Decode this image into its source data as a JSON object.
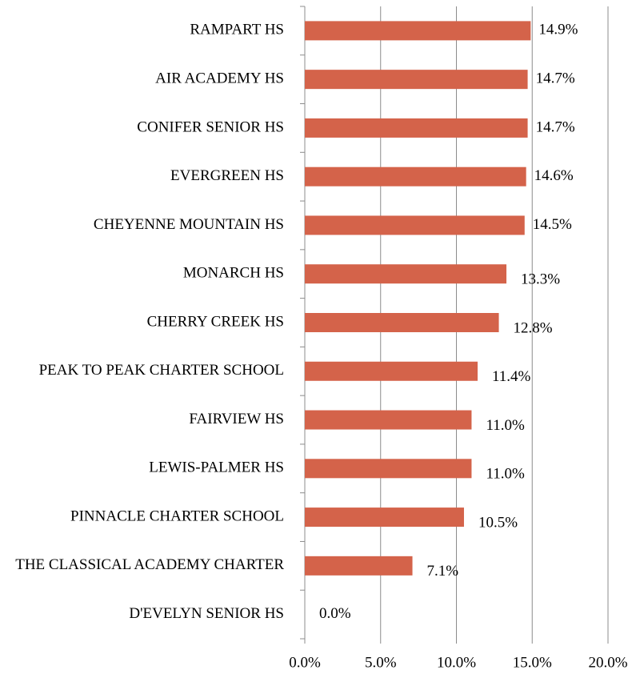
{
  "chart_data": {
    "type": "bar",
    "orientation": "horizontal",
    "categories": [
      "RAMPART HS",
      "AIR ACADEMY HS",
      "CONIFER SENIOR HS",
      "EVERGREEN HS",
      "CHEYENNE MOUNTAIN HS",
      "MONARCH HS",
      "CHERRY CREEK HS",
      "PEAK TO PEAK CHARTER SCHOOL",
      "FAIRVIEW HS",
      "LEWIS-PALMER HS",
      "PINNACLE CHARTER SCHOOL",
      "THE CLASSICAL ACADEMY CHARTER",
      "D'EVELYN SENIOR HS"
    ],
    "values": [
      14.9,
      14.7,
      14.7,
      14.6,
      14.5,
      13.3,
      12.8,
      11.4,
      11.0,
      11.0,
      10.5,
      7.1,
      0.0
    ],
    "value_labels": [
      "14.9%",
      "14.7%",
      "14.7%",
      "14.6%",
      "14.5%",
      "13.3%",
      "12.8%",
      "11.4%",
      "11.0%",
      "11.0%",
      "10.5%",
      "7.1%",
      "0.0%"
    ],
    "color": "#d4634a",
    "xlim": [
      0,
      20
    ],
    "xticks": [
      {
        "value": 0,
        "label": "0.0%"
      },
      {
        "value": 5,
        "label": "5.0%"
      },
      {
        "value": 10,
        "label": "10.0%"
      },
      {
        "value": 15,
        "label": "15.0%"
      },
      {
        "value": 20,
        "label": "20.0%"
      }
    ],
    "grid": true
  }
}
